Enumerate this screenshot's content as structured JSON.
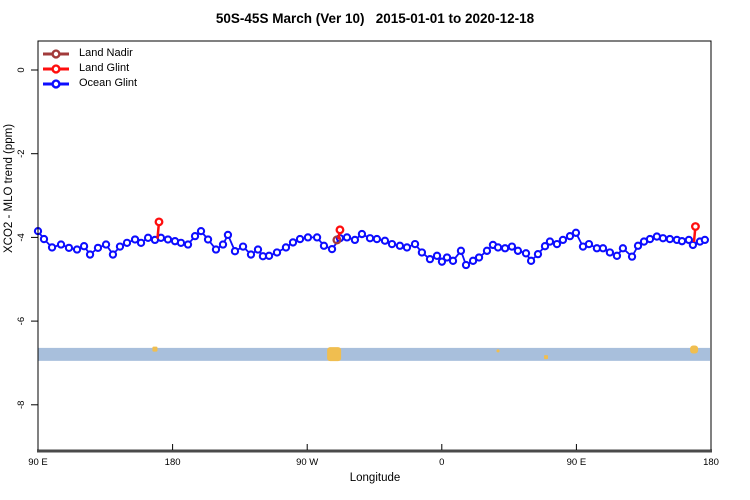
{
  "chart_data": {
    "type": "line",
    "title": "50S-45S March (Ver 10)   2015-01-01 to 2020-12-18",
    "xlabel": "Longitude",
    "ylabel": "XCO2 - MLO trend (ppm)",
    "x_axis": {
      "range": [
        90,
        540
      ],
      "ticks": [
        {
          "lon": 90,
          "label": "90 E"
        },
        {
          "lon": 180,
          "label": "180"
        },
        {
          "lon": 270,
          "label": "90 W"
        },
        {
          "lon": 360,
          "label": "0"
        },
        {
          "lon": 450,
          "label": "90 E"
        },
        {
          "lon": 540,
          "label": "180"
        }
      ]
    },
    "y_axis": {
      "range": [
        -9.1,
        0.7
      ],
      "ticks": [
        0,
        -2,
        -4,
        -6,
        -8
      ]
    },
    "legend_position": "top-left-inside",
    "grid": false,
    "series": [
      {
        "name": "Land Nadir",
        "color": "#A23B3B",
        "points": [
          {
            "lon": 289.9,
            "y": -4.06
          }
        ]
      },
      {
        "name": "Land Glint",
        "color": "#FF0E0E",
        "points": [
          {
            "lon": 170.9,
            "y": -3.63,
            "stem_y": -4.03
          },
          {
            "lon": 291.9,
            "y": -3.82,
            "stem_y": -4.05
          },
          {
            "lon": 529.6,
            "y": -3.74,
            "stem_y": -4.11
          }
        ]
      },
      {
        "name": "Ocean Glint",
        "color": "#0D0DFF",
        "lons": [
          90.0,
          94.0,
          99.4,
          105.4,
          110.7,
          116.1,
          120.8,
          124.8,
          130.1,
          135.5,
          140.1,
          144.8,
          149.5,
          154.9,
          158.9,
          163.6,
          168.2,
          172.2,
          176.9,
          181.6,
          185.6,
          190.3,
          195.0,
          199.0,
          203.7,
          209.0,
          213.7,
          217.0,
          221.7,
          227.1,
          232.4,
          237.1,
          240.4,
          244.5,
          249.8,
          255.8,
          260.5,
          265.2,
          270.5,
          276.6,
          281.2,
          286.6,
          291.9,
          296.6,
          301.9,
          306.6,
          312.0,
          316.6,
          322.0,
          326.7,
          332.0,
          336.7,
          342.1,
          346.7,
          352.1,
          356.8,
          360.1,
          363.5,
          367.5,
          372.8,
          376.2,
          380.9,
          384.9,
          390.2,
          394.2,
          397.6,
          402.3,
          406.9,
          410.9,
          416.3,
          419.7,
          424.3,
          429.0,
          432.3,
          437.0,
          441.0,
          445.7,
          449.7,
          454.4,
          458.4,
          463.7,
          467.8,
          472.4,
          477.1,
          481.1,
          487.2,
          491.2,
          495.2,
          499.2,
          503.8,
          507.9,
          512.5,
          517.2,
          520.6,
          525.2,
          527.9,
          532.6,
          535.9
        ],
        "values": [
          -3.85,
          -4.04,
          -4.24,
          -4.17,
          -4.25,
          -4.29,
          -4.21,
          -4.41,
          -4.25,
          -4.17,
          -4.41,
          -4.22,
          -4.13,
          -4.05,
          -4.13,
          -4.01,
          -4.06,
          -4.01,
          -4.05,
          -4.09,
          -4.13,
          -4.17,
          -3.97,
          -3.85,
          -4.05,
          -4.29,
          -4.17,
          -3.94,
          -4.33,
          -4.22,
          -4.41,
          -4.29,
          -4.45,
          -4.44,
          -4.36,
          -4.24,
          -4.12,
          -4.04,
          -4.0,
          -4.0,
          -4.2,
          -4.28,
          -4.02,
          -4.0,
          -4.06,
          -3.92,
          -4.02,
          -4.04,
          -4.08,
          -4.16,
          -4.2,
          -4.24,
          -4.16,
          -4.36,
          -4.52,
          -4.44,
          -4.58,
          -4.48,
          -4.56,
          -4.32,
          -4.66,
          -4.56,
          -4.48,
          -4.32,
          -4.18,
          -4.24,
          -4.26,
          -4.22,
          -4.32,
          -4.38,
          -4.56,
          -4.4,
          -4.21,
          -4.1,
          -4.16,
          -4.06,
          -3.97,
          -3.89,
          -4.22,
          -4.16,
          -4.26,
          -4.26,
          -4.36,
          -4.44,
          -4.26,
          -4.46,
          -4.2,
          -4.1,
          -4.04,
          -3.98,
          -4.02,
          -4.04,
          -4.06,
          -4.09,
          -4.06,
          -4.18,
          -4.1,
          -4.06
        ]
      }
    ],
    "band": {
      "y_top": -6.64,
      "y_bottom": -6.95,
      "color": "#A8BFDC",
      "marks_color": "#F0BE50",
      "marks": [
        {
          "lon": 168.2,
          "y": -6.67,
          "size": 5
        },
        {
          "lon": 288.0,
          "y": -6.79,
          "size": 14
        },
        {
          "lon": 397.6,
          "y": -6.71,
          "size": 3
        },
        {
          "lon": 429.7,
          "y": -6.86,
          "size": 4
        },
        {
          "lon": 528.7,
          "y": -6.68,
          "size": 8
        }
      ]
    },
    "axis_line_color": "#4A4A4A",
    "box_color": "#000000"
  }
}
